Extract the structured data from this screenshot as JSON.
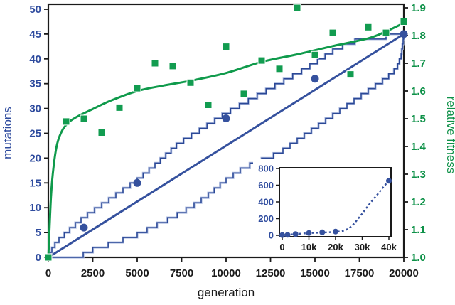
{
  "chart_data": {
    "type": "line",
    "main": {
      "xlabel": "generation",
      "ylabel_left": "mutations",
      "ylabel_right": "relative fitness",
      "xlim": [
        0,
        20000
      ],
      "ylim_left": [
        0,
        50
      ],
      "ylim_right": [
        1.0,
        1.9
      ],
      "xticks": [
        {
          "v": 0,
          "label": "0"
        },
        {
          "v": 2500,
          "label": "2500"
        },
        {
          "v": 5000,
          "label": "5000"
        },
        {
          "v": 7500,
          "label": "7500"
        },
        {
          "v": 10000,
          "label": "10000"
        },
        {
          "v": 12500,
          "label": "12500"
        },
        {
          "v": 15000,
          "label": "15000"
        },
        {
          "v": 17500,
          "label": "17500"
        },
        {
          "v": 20000,
          "label": "20000"
        }
      ],
      "yticks_left": [
        {
          "v": 0,
          "label": "0"
        },
        {
          "v": 5,
          "label": "5"
        },
        {
          "v": 10,
          "label": "10"
        },
        {
          "v": 15,
          "label": "15"
        },
        {
          "v": 20,
          "label": "20"
        },
        {
          "v": 25,
          "label": "25"
        },
        {
          "v": 30,
          "label": "30"
        },
        {
          "v": 35,
          "label": "35"
        },
        {
          "v": 40,
          "label": "40"
        },
        {
          "v": 45,
          "label": "45"
        },
        {
          "v": 50,
          "label": "50"
        }
      ],
      "yticks_right": [
        {
          "v": 1.0,
          "label": "1.0"
        },
        {
          "v": 1.1,
          "label": "1.1"
        },
        {
          "v": 1.2,
          "label": "1.2"
        },
        {
          "v": 1.3,
          "label": "1.3"
        },
        {
          "v": 1.4,
          "label": "1.4"
        },
        {
          "v": 1.5,
          "label": "1.5"
        },
        {
          "v": 1.6,
          "label": "1.6"
        },
        {
          "v": 1.7,
          "label": "1.7"
        },
        {
          "v": 1.8,
          "label": "1.8"
        },
        {
          "v": 1.9,
          "label": "1.9"
        }
      ],
      "series": [
        {
          "name": "relative-fitness-points",
          "type": "scatter",
          "marker": "square",
          "axis": "right",
          "x": [
            0,
            1000,
            2000,
            3000,
            4000,
            5000,
            6000,
            7000,
            8000,
            9000,
            10000,
            11000,
            12000,
            13000,
            14000,
            15000,
            16000,
            17000,
            18000,
            19000,
            20000
          ],
          "y": [
            1.0,
            1.49,
            1.5,
            1.45,
            1.54,
            1.61,
            1.7,
            1.69,
            1.63,
            1.55,
            1.76,
            1.59,
            1.71,
            1.68,
            1.9,
            1.73,
            1.81,
            1.66,
            1.83,
            1.81,
            1.85
          ]
        },
        {
          "name": "relative-fitness-trend",
          "type": "line",
          "axis": "right",
          "points": [
            [
              0,
              1.0
            ],
            [
              150,
              1.22
            ],
            [
              300,
              1.33
            ],
            [
              500,
              1.41
            ],
            [
              800,
              1.46
            ],
            [
              1200,
              1.49
            ],
            [
              1700,
              1.51
            ],
            [
              2500,
              1.535
            ],
            [
              3500,
              1.565
            ],
            [
              5000,
              1.6
            ],
            [
              6500,
              1.62
            ],
            [
              8000,
              1.637
            ],
            [
              10000,
              1.665
            ],
            [
              12000,
              1.705
            ],
            [
              14000,
              1.732
            ],
            [
              16000,
              1.762
            ],
            [
              18000,
              1.79
            ],
            [
              19000,
              1.815
            ],
            [
              20000,
              1.845
            ]
          ]
        },
        {
          "name": "mutation-count-points",
          "type": "scatter",
          "marker": "circle",
          "axis": "left",
          "x": [
            2000,
            5000,
            10000,
            15000,
            20000
          ],
          "y": [
            6,
            15,
            28,
            36,
            45
          ]
        },
        {
          "name": "mutation-linear-fit",
          "type": "line",
          "axis": "left",
          "points": [
            [
              0,
              0
            ],
            [
              20000,
              45
            ]
          ]
        },
        {
          "name": "mutation-upper-bound-staircase",
          "type": "staircase",
          "axis": "left",
          "max_steps": 45,
          "guide": [
            [
              0,
              0
            ],
            [
              250,
              2.5
            ],
            [
              600,
              4
            ],
            [
              1200,
              6
            ],
            [
              2000,
              8.5
            ],
            [
              3000,
              11
            ],
            [
              4000,
              13.5
            ],
            [
              5000,
              16
            ],
            [
              6000,
              19
            ],
            [
              7300,
              23.3
            ],
            [
              8500,
              26
            ],
            [
              10000,
              29.5
            ],
            [
              11500,
              32.5
            ],
            [
              13000,
              35.5
            ],
            [
              14500,
              38.5
            ],
            [
              16000,
              42
            ],
            [
              17000,
              43.8
            ],
            [
              18000,
              44.6
            ],
            [
              19000,
              45
            ],
            [
              20000,
              45
            ]
          ]
        },
        {
          "name": "mutation-lower-bound-staircase",
          "type": "staircase",
          "axis": "left",
          "max_steps": 45,
          "guide": [
            [
              0,
              0
            ],
            [
              1430,
              0.01
            ],
            [
              2500,
              2
            ],
            [
              3800,
              3.5
            ],
            [
              5000,
              5
            ],
            [
              6000,
              6.8
            ],
            [
              7000,
              8.5
            ],
            [
              8000,
              10.5
            ],
            [
              9000,
              13
            ],
            [
              10000,
              16
            ],
            [
              11000,
              18.5
            ],
            [
              12000,
              20
            ],
            [
              13000,
              21.5
            ],
            [
              14000,
              24
            ],
            [
              15000,
              26.5
            ],
            [
              16000,
              29
            ],
            [
              17000,
              31.5
            ],
            [
              18000,
              34
            ],
            [
              19000,
              36.5
            ],
            [
              19600,
              38.5
            ],
            [
              19850,
              41
            ],
            [
              20000,
              45
            ]
          ]
        }
      ]
    },
    "inset": {
      "xlim": [
        0,
        40000
      ],
      "ylim": [
        0,
        800
      ],
      "xticks": [
        {
          "v": 0,
          "label": "0"
        },
        {
          "v": 10000,
          "label": "10k"
        },
        {
          "v": 20000,
          "label": "20k"
        },
        {
          "v": 30000,
          "label": "30k"
        },
        {
          "v": 40000,
          "label": "40k"
        }
      ],
      "yticks": [
        {
          "v": 0,
          "label": "0"
        },
        {
          "v": 200,
          "label": "200"
        },
        {
          "v": 400,
          "label": "400"
        },
        {
          "v": 600,
          "label": "600"
        },
        {
          "v": 800,
          "label": "800"
        }
      ],
      "series": [
        {
          "name": "long-term-mutation-points",
          "type": "scatter",
          "marker": "circle",
          "x": [
            0,
            2000,
            5000,
            10000,
            15000,
            20000,
            40000
          ],
          "y": [
            3,
            6,
            15,
            28,
            36,
            45,
            653
          ]
        },
        {
          "name": "long-term-mutation-trend-dotted",
          "type": "dotted-line",
          "points": [
            [
              0,
              3
            ],
            [
              2000,
              6
            ],
            [
              5000,
              15
            ],
            [
              10000,
              26
            ],
            [
              15000,
              33
            ],
            [
              20000,
              42
            ],
            [
              23000,
              55
            ],
            [
              25000,
              85
            ],
            [
              26500,
              125
            ],
            [
              28000,
              180
            ],
            [
              30000,
              260
            ],
            [
              32000,
              345
            ],
            [
              34000,
              425
            ],
            [
              36000,
              500
            ],
            [
              38000,
              580
            ],
            [
              40000,
              653
            ]
          ]
        }
      ]
    },
    "colors": {
      "blue_line": "#35519e",
      "blue_text": "#2e4b9e",
      "staircase_light": "#b3c0e2",
      "staircase_dark": "#2b4896",
      "green_line": "#0f9a4b",
      "green_square": "#129c50",
      "green_text": "#0e9148",
      "axis_black": "#1a1a1a"
    }
  }
}
